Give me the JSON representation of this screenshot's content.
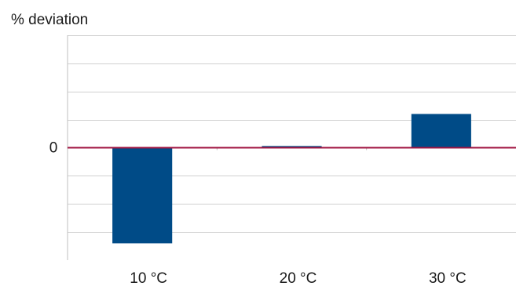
{
  "chart_data": {
    "type": "bar",
    "title": "",
    "xlabel": "",
    "ylabel": "% deviation",
    "categories": [
      "10 °C",
      "20 °C",
      "30 °C"
    ],
    "values": [
      -3.4,
      0.06,
      1.2
    ],
    "ylim": [
      -4,
      4
    ],
    "y_tick_labels": [
      {
        "value": 0,
        "label": "0"
      }
    ],
    "grid": true,
    "legend": "none",
    "colors": {
      "bar": "#004B87",
      "zero_line": "#A01441",
      "grid": "#D0D0D0",
      "axis": "#BFBFBF"
    }
  }
}
